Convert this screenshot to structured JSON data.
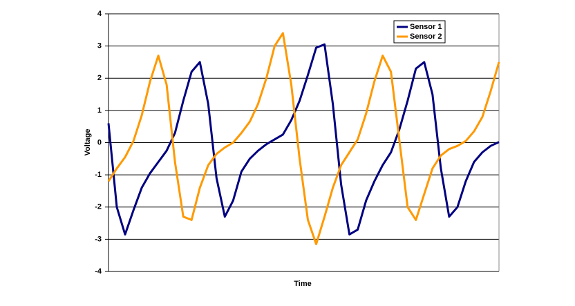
{
  "chart_data": {
    "type": "line",
    "x_label": "Time",
    "y_label": "Voltage",
    "ylim": [
      -4,
      4
    ],
    "yticks": [
      -4,
      -3,
      -2,
      -1,
      0,
      1,
      2,
      3,
      4
    ],
    "grid": true,
    "legend": "top-right",
    "series": [
      {
        "name": "Sensor 1",
        "color": "#000080",
        "values": [
          0.6,
          -2.0,
          -2.85,
          -2.1,
          -1.4,
          -0.95,
          -0.6,
          -0.25,
          0.3,
          1.3,
          2.2,
          2.5,
          1.2,
          -1.1,
          -2.3,
          -1.8,
          -0.9,
          -0.5,
          -0.25,
          -0.05,
          0.1,
          0.25,
          0.7,
          1.3,
          2.1,
          2.95,
          3.05,
          1.2,
          -1.3,
          -2.85,
          -2.7,
          -1.8,
          -1.2,
          -0.7,
          -0.3,
          0.4,
          1.3,
          2.3,
          2.5,
          1.5,
          -0.8,
          -2.3,
          -2.0,
          -1.2,
          -0.6,
          -0.3,
          -0.1,
          0.02
        ]
      },
      {
        "name": "Sensor 2",
        "color": "#ff9900",
        "values": [
          -1.2,
          -0.8,
          -0.45,
          0.05,
          0.85,
          1.9,
          2.7,
          1.8,
          -0.6,
          -2.3,
          -2.4,
          -1.4,
          -0.7,
          -0.35,
          -0.15,
          0.0,
          0.3,
          0.65,
          1.2,
          2.0,
          3.0,
          3.4,
          1.8,
          -0.5,
          -2.4,
          -3.15,
          -2.3,
          -1.4,
          -0.7,
          -0.3,
          0.1,
          0.9,
          1.9,
          2.7,
          2.2,
          0.1,
          -2.0,
          -2.4,
          -1.6,
          -0.8,
          -0.4,
          -0.2,
          -0.1,
          0.05,
          0.35,
          0.8,
          1.6,
          2.5
        ]
      }
    ]
  }
}
